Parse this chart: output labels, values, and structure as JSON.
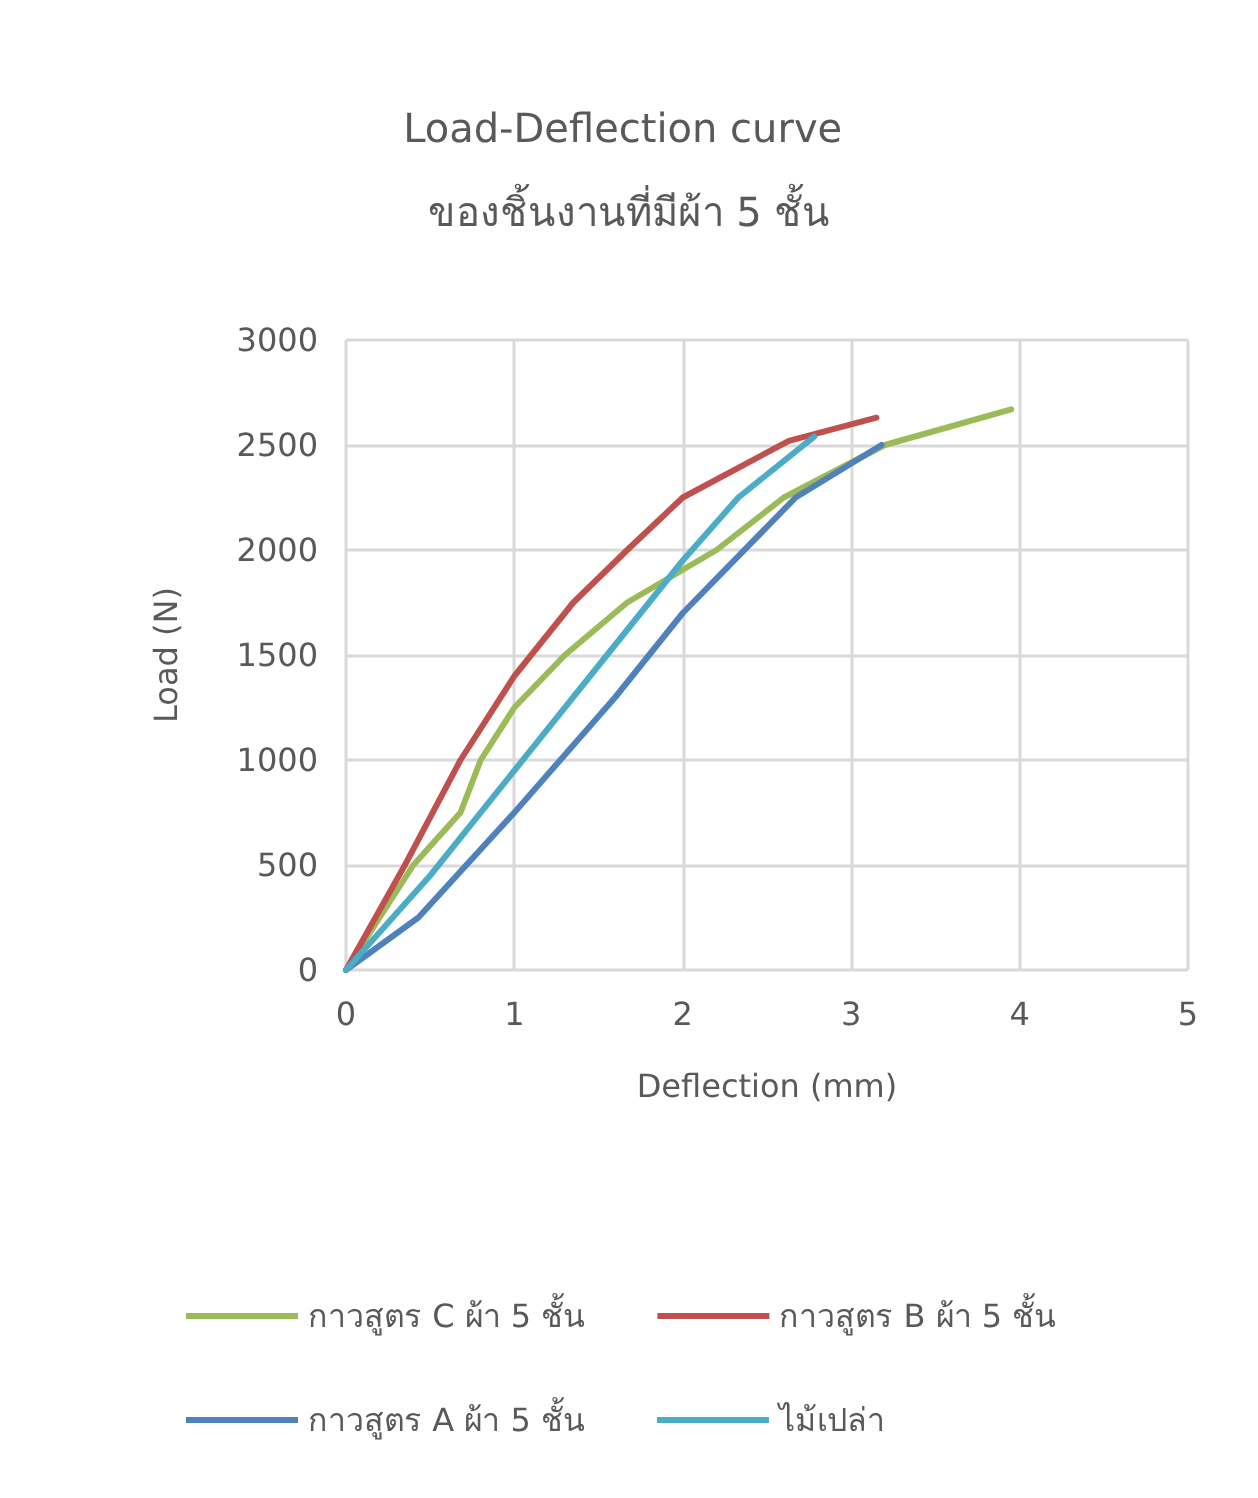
{
  "chart_data": {
    "type": "line",
    "title": "Load-Deflection curve ของชิ้นงานที่มีผ้า 5 ชั้น",
    "xlabel": "Deflection (mm)",
    "ylabel": "Load (N)",
    "xlim": [
      0,
      5
    ],
    "xticks": [
      0,
      1,
      2,
      3,
      4,
      5
    ],
    "ylim": [
      0,
      3000
    ],
    "yticks": [
      0,
      500,
      1000,
      1500,
      2000,
      2500,
      3000
    ],
    "grid": true,
    "legend": "bottom",
    "marker": "none",
    "line_style": "solid",
    "series": [
      {
        "name": "กาวสูตร C ผ้า 5 ชั้น",
        "color": "#9bbb59",
        "x": [
          0,
          0.4,
          0.68,
          0.8,
          1.0,
          1.3,
          1.67,
          2.2,
          2.6,
          3.2,
          3.95
        ],
        "values": [
          0,
          500,
          750,
          1000,
          1250,
          1500,
          1750,
          2000,
          2250,
          2500,
          2670
        ]
      },
      {
        "name": "กาวสูตร B ผ้า 5 ชั้น",
        "color": "#c0504d",
        "x": [
          0,
          0.35,
          0.68,
          1.0,
          1.35,
          1.67,
          2.0,
          2.63,
          3.15
        ],
        "values": [
          0,
          500,
          1000,
          1400,
          1750,
          2000,
          2250,
          2520,
          2630
        ]
      },
      {
        "name": "กาวสูตร A ผ้า 5 ชั้น",
        "color": "#4f81bd",
        "x": [
          0,
          0.43,
          1.0,
          1.6,
          2.0,
          2.67,
          3.18
        ],
        "values": [
          0,
          250,
          750,
          1300,
          1700,
          2250,
          2500
        ]
      },
      {
        "name": "ไม้เปล่า",
        "color": "#4bacc6",
        "x": [
          0,
          0.5,
          1.0,
          1.5,
          2.0,
          2.33,
          2.78
        ],
        "values": [
          0,
          450,
          950,
          1450,
          1950,
          2250,
          2540
        ]
      }
    ]
  }
}
